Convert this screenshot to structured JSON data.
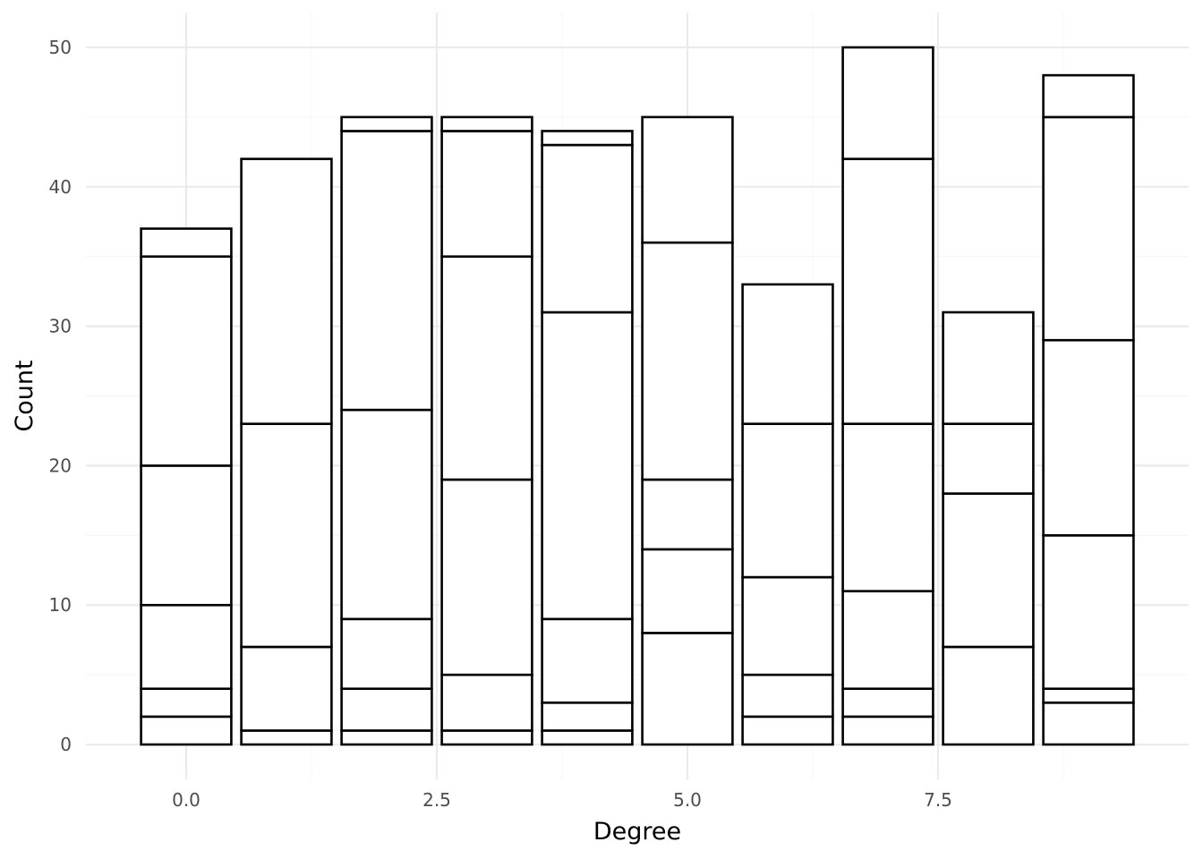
{
  "chart_data": {
    "type": "bar",
    "stacked": true,
    "xlabel": "Degree",
    "ylabel": "Count",
    "xlim": [
      -1.0,
      10.0
    ],
    "ylim": [
      -2.5,
      52.5
    ],
    "x_ticks": [
      0.0,
      2.5,
      5.0,
      7.5
    ],
    "x_tick_labels": [
      "0.0",
      "2.5",
      "5.0",
      "7.5"
    ],
    "y_ticks": [
      0,
      10,
      20,
      30,
      40,
      50
    ],
    "y_tick_labels": [
      "0",
      "10",
      "20",
      "30",
      "40",
      "50"
    ],
    "grid": true,
    "bar_fill": "#ffffff",
    "bar_outline": "#000000",
    "bars": [
      {
        "x": 0,
        "total": 37,
        "boundaries": [
          0,
          2,
          4,
          10,
          20,
          35,
          37
        ]
      },
      {
        "x": 1,
        "total": 42,
        "boundaries": [
          0,
          1,
          7,
          23,
          42
        ]
      },
      {
        "x": 2,
        "total": 45,
        "boundaries": [
          0,
          1,
          4,
          9,
          24,
          44,
          45
        ]
      },
      {
        "x": 3,
        "total": 45,
        "boundaries": [
          0,
          1,
          5,
          19,
          35,
          44,
          45
        ]
      },
      {
        "x": 4,
        "total": 44,
        "boundaries": [
          0,
          1,
          3,
          9,
          31,
          43,
          44
        ]
      },
      {
        "x": 5,
        "total": 45,
        "boundaries": [
          0,
          8,
          14,
          19,
          36,
          45
        ]
      },
      {
        "x": 6,
        "total": 33,
        "boundaries": [
          0,
          2,
          5,
          12,
          23,
          33
        ]
      },
      {
        "x": 7,
        "total": 50,
        "boundaries": [
          0,
          2,
          4,
          11,
          23,
          42,
          50
        ]
      },
      {
        "x": 8,
        "total": 31,
        "boundaries": [
          0,
          7,
          18,
          23,
          31
        ]
      },
      {
        "x": 9,
        "total": 48,
        "boundaries": [
          0,
          3,
          4,
          15,
          29,
          45,
          48
        ]
      }
    ]
  }
}
